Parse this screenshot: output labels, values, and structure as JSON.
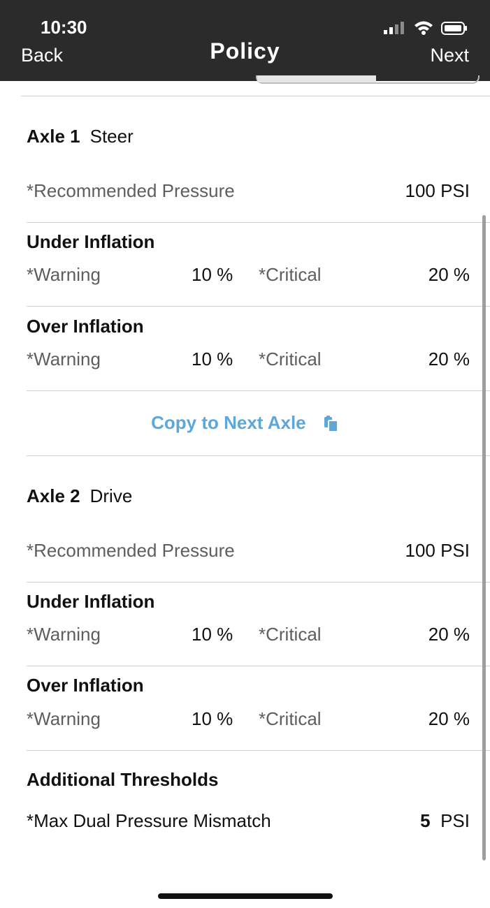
{
  "status_bar": {
    "time": "10:30"
  },
  "nav": {
    "back_label": "Back",
    "title": "Policy",
    "next_label": "Next"
  },
  "axles": [
    {
      "label": "Axle 1",
      "position": "Steer",
      "recommended_label": "*Recommended Pressure",
      "recommended_value": "100 PSI",
      "under": {
        "title": "Under Inflation",
        "warning_label": "*Warning",
        "warning_value": "10 %",
        "critical_label": "*Critical",
        "critical_value": "20 %"
      },
      "over": {
        "title": "Over Inflation",
        "warning_label": "*Warning",
        "warning_value": "10 %",
        "critical_label": "*Critical",
        "critical_value": "20 %"
      }
    },
    {
      "label": "Axle 2",
      "position": "Drive",
      "recommended_label": "*Recommended Pressure",
      "recommended_value": "100 PSI",
      "under": {
        "title": "Under Inflation",
        "warning_label": "*Warning",
        "warning_value": "10 %",
        "critical_label": "*Critical",
        "critical_value": "20 %"
      },
      "over": {
        "title": "Over Inflation",
        "warning_label": "*Warning",
        "warning_value": "10 %",
        "critical_label": "*Critical",
        "critical_value": "20 %"
      }
    }
  ],
  "copy_next_axle": {
    "label": "Copy to Next Axle",
    "icon": "copy-icon",
    "color": "#5da7d9"
  },
  "additional": {
    "title": "Additional Thresholds",
    "mismatch_label": "*Max Dual Pressure Mismatch",
    "mismatch_value": "5",
    "mismatch_unit": "PSI"
  },
  "colors": {
    "nav_bg": "#2b2b2b",
    "accent": "#5da7d9"
  }
}
